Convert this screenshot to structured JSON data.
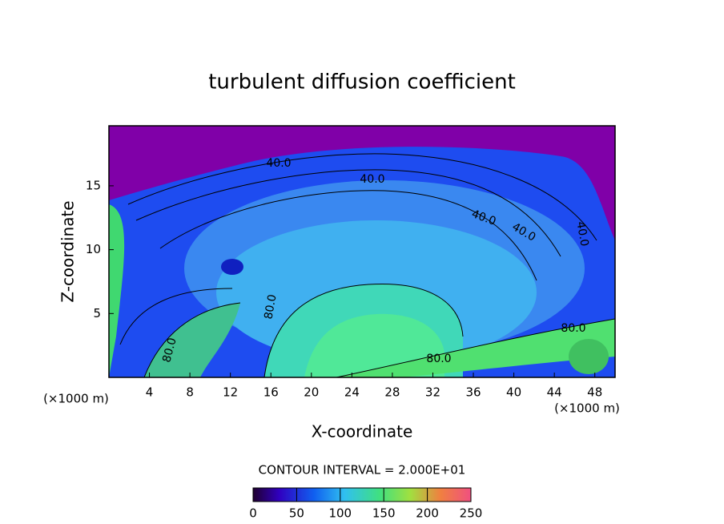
{
  "chart_data": {
    "type": "contour",
    "title": "turbulent diffusion coefficient",
    "x_label": "X-coordinate",
    "y_label": "Z-coordinate",
    "x_unit": "(×1000 m)",
    "y_unit": "(×1000 m)",
    "xlim": [
      0,
      50
    ],
    "ylim": [
      0,
      19.7
    ],
    "xticks": [
      4,
      8,
      12,
      16,
      20,
      24,
      28,
      32,
      36,
      40,
      44,
      48
    ],
    "yticks": [
      5,
      10,
      15
    ],
    "contour_labels": [
      "40.0",
      "40.0",
      "40.0",
      "40.0",
      "40.0",
      "80.0",
      "80.0",
      "80.0",
      "80.0"
    ],
    "contour_interval_label": "CONTOUR INTERVAL = 2.000E+01",
    "colorbar": {
      "lim": [
        0,
        250
      ],
      "ticks": [
        0,
        50,
        100,
        150,
        200,
        250
      ]
    }
  }
}
